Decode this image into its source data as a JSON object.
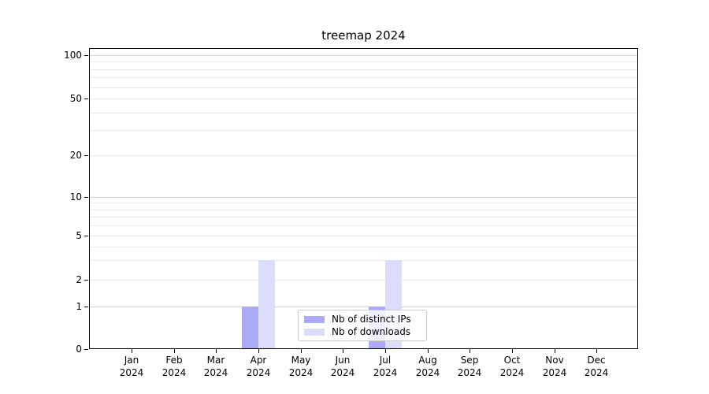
{
  "title": "treemap 2024",
  "x_axis": {
    "months": [
      "Jan",
      "Feb",
      "Mar",
      "Apr",
      "May",
      "Jun",
      "Jul",
      "Aug",
      "Sep",
      "Oct",
      "Nov",
      "Dec"
    ],
    "year": "2024"
  },
  "y_axis": {
    "tick_values": [
      0,
      1,
      2,
      5,
      10,
      20,
      50,
      100
    ]
  },
  "legend": {
    "items": [
      {
        "label": "Nb of distinct IPs",
        "color": "#aaaaf8"
      },
      {
        "label": "Nb of downloads",
        "color": "#dcdcfc"
      }
    ]
  },
  "chart_data": {
    "type": "bar",
    "title": "treemap 2024",
    "categories": [
      "Jan 2024",
      "Feb 2024",
      "Mar 2024",
      "Apr 2024",
      "May 2024",
      "Jun 2024",
      "Jul 2024",
      "Aug 2024",
      "Sep 2024",
      "Oct 2024",
      "Nov 2024",
      "Dec 2024"
    ],
    "series": [
      {
        "name": "Nb of distinct IPs",
        "color": "#aaaaf8",
        "values": [
          0,
          0,
          0,
          1,
          0,
          0,
          1,
          0,
          0,
          0,
          0,
          0
        ]
      },
      {
        "name": "Nb of downloads",
        "color": "#dcdcfc",
        "values": [
          0,
          0,
          0,
          3,
          0,
          0,
          3,
          0,
          0,
          0,
          0,
          0
        ]
      }
    ],
    "xlabel": "",
    "ylabel": "",
    "yscale": "symlog",
    "yticks": [
      0,
      1,
      2,
      5,
      10,
      20,
      50,
      100
    ],
    "ylim": [
      0,
      112
    ],
    "grid": true,
    "legend_position": "lower center"
  }
}
